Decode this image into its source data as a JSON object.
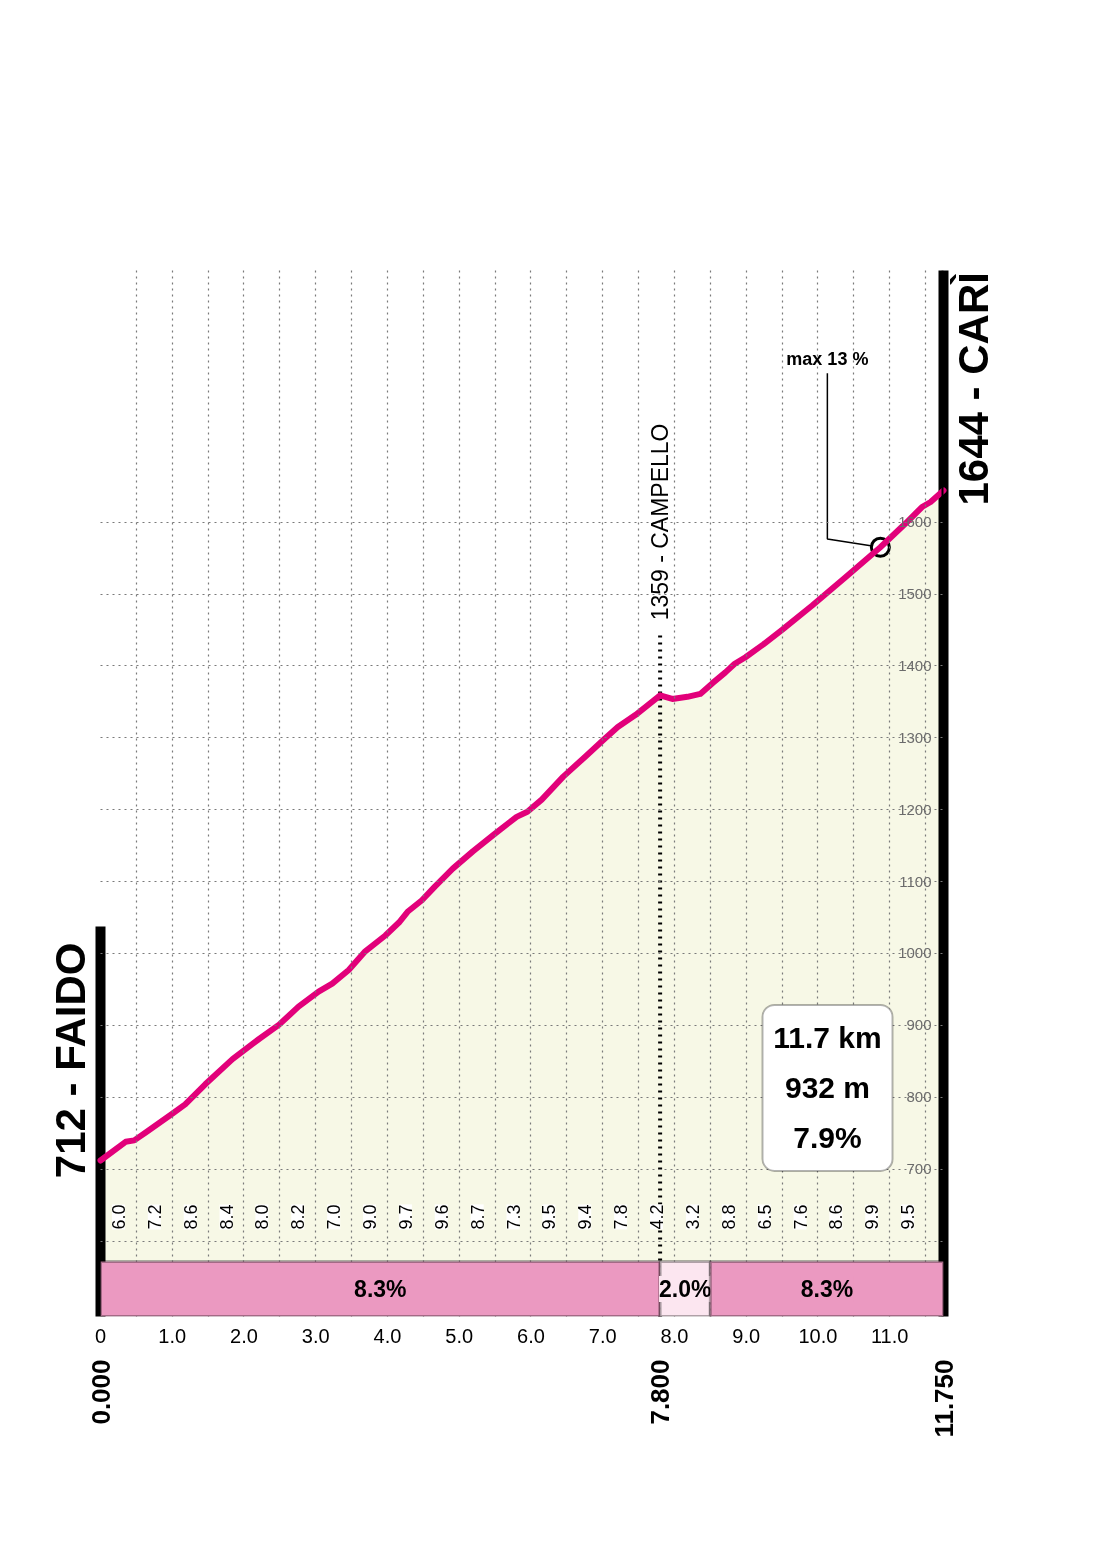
{
  "chart_data": {
    "type": "area",
    "color": "#f7f8e6",
    "x": [
      0,
      0.35,
      0.47,
      0.63,
      1.0,
      1.18,
      1.46,
      1.84,
      2.21,
      2.49,
      2.76,
      3.04,
      3.23,
      3.46,
      3.69,
      3.97,
      4.16,
      4.28,
      4.48,
      4.66,
      4.91,
      5.19,
      5.49,
      5.8,
      5.95,
      6.15,
      6.45,
      6.76,
      7.02,
      7.21,
      7.46,
      7.8,
      7.97,
      8.18,
      8.36,
      8.53,
      8.71,
      8.84,
      8.99,
      9.24,
      9.5,
      9.92,
      10.38,
      10.87,
      11.22,
      11.45,
      11.57,
      11.75
    ],
    "values": [
      712,
      738,
      740,
      751,
      777,
      790,
      818,
      853,
      881,
      901,
      926,
      947,
      958,
      977,
      1003,
      1025,
      1043,
      1058,
      1074,
      1093,
      1118,
      1142,
      1166,
      1190,
      1197,
      1214,
      1246,
      1274,
      1298,
      1315,
      1332,
      1359,
      1354,
      1357,
      1361,
      1376,
      1391,
      1403,
      1412,
      1430,
      1450,
      1484,
      1523,
      1565,
      1598,
      1621,
      1628,
      1644
    ],
    "xlim": [
      0,
      11.75
    ],
    "xticks": [
      0,
      {
        "value": 0.5,
        "label": null
      },
      {
        "value": 1,
        "label": "1.0"
      },
      {
        "value": 1.5,
        "label": null
      },
      {
        "value": 2,
        "label": "2.0"
      },
      {
        "value": 2.5,
        "label": null
      },
      {
        "value": 3,
        "label": "3.0"
      },
      {
        "value": 3.5,
        "label": null
      },
      {
        "value": 4,
        "label": "4.0"
      },
      {
        "value": 4.5,
        "label": null
      },
      {
        "value": 5,
        "label": "5.0"
      },
      {
        "value": 5.5,
        "label": null
      },
      {
        "value": 6,
        "label": "6.0"
      },
      {
        "value": 6.5,
        "label": null
      },
      {
        "value": 7,
        "label": "7.0"
      },
      {
        "value": 7.5,
        "label": null
      },
      {
        "value": 8,
        "label": "8.0"
      },
      {
        "value": 8.5,
        "label": null
      },
      {
        "value": 9,
        "label": "9.0"
      },
      {
        "value": 9.5,
        "label": null
      },
      {
        "value": 10,
        "label": "10.0"
      },
      {
        "value": 10.5,
        "label": null
      },
      {
        "value": 11,
        "label": "11.0"
      },
      {
        "value": 11.5,
        "label": null
      }
    ],
    "x2lim": [
      0,
      11.75
    ],
    "x2ticks": [
      {
        "value": 0,
        "label": "0.000"
      },
      {
        "value": 7.8,
        "label": "7.800"
      },
      {
        "value": 11.75,
        "label": "11.750"
      }
    ],
    "ylim": [
      495,
      1950
    ],
    "yticks": [
      {
        "value": 600,
        "label": null
      },
      700,
      800,
      900,
      1000,
      1100,
      1200,
      1300,
      1400,
      1500,
      1600
    ],
    "grid": true,
    "ref_lines": [
      {
        "axis": "x",
        "value": 0,
        "label": "712 - FAIDO",
        "color": "#000000"
      },
      {
        "axis": "x",
        "value": 7.8,
        "label": "1359 - CAMPELLO",
        "line_style": "dotted",
        "color": "#000000"
      },
      {
        "axis": "x",
        "value": 11.75,
        "label": "1644 - CARÌ",
        "color": "#000000"
      }
    ],
    "bands": [
      {
        "axis": "x",
        "from": 0,
        "to": 7.8,
        "label": "8.3%",
        "color": "#eb99c1"
      },
      {
        "axis": "x",
        "from": 7.8,
        "to": 8.5,
        "label": "2.0%",
        "color": "#fce6f0"
      },
      {
        "axis": "x",
        "from": 8.5,
        "to": 11.75,
        "label": "8.3%",
        "color": "#eb99c1"
      }
    ],
    "annotations": [
      {
        "text": "max 13 %",
        "x": 10.87,
        "y": 1565
      },
      "11.7 km",
      "932 m",
      "7.9%",
      {
        "text": "6.0",
        "x": 0.25
      },
      {
        "text": "7.2",
        "x": 0.75
      },
      {
        "text": "8.6",
        "x": 1.25
      },
      {
        "text": "8.4",
        "x": 1.75
      },
      {
        "text": "8.0",
        "x": 2.25
      },
      {
        "text": "8.2",
        "x": 2.75
      },
      {
        "text": "7.0",
        "x": 3.25
      },
      {
        "text": "9.0",
        "x": 3.75
      },
      {
        "text": "9.7",
        "x": 4.25
      },
      {
        "text": "9.6",
        "x": 4.75
      },
      {
        "text": "8.7",
        "x": 5.25
      },
      {
        "text": "7.3",
        "x": 5.75
      },
      {
        "text": "9.5",
        "x": 6.25
      },
      {
        "text": "9.4",
        "x": 6.75
      },
      {
        "text": "7.8",
        "x": 7.25
      },
      {
        "text": "4.2",
        "x": 7.75
      },
      {
        "text": "3.2",
        "x": 8.25
      },
      {
        "text": "8.8",
        "x": 8.75
      },
      {
        "text": "6.5",
        "x": 9.25
      },
      {
        "text": "7.6",
        "x": 9.75
      },
      {
        "text": "8.6",
        "x": 10.25
      },
      {
        "text": "9.9",
        "x": 10.75
      },
      {
        "text": "9.5",
        "x": 11.25
      }
    ]
  }
}
